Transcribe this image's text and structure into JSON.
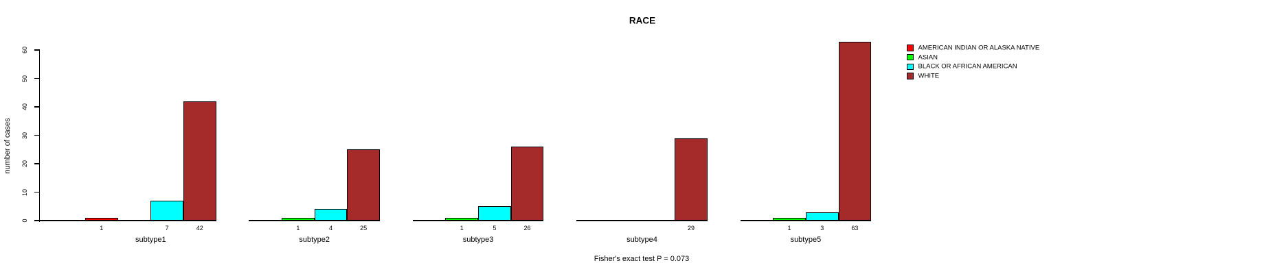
{
  "chart_data": {
    "type": "bar",
    "title": "RACE",
    "ylabel": "number of cases",
    "xlabel": "",
    "ylim": [
      0,
      60
    ],
    "yticks": [
      0,
      10,
      20,
      30,
      40,
      50,
      60
    ],
    "grid": false,
    "legend_position": "right",
    "annotation": "Fisher's exact test P = 0.073",
    "categories": [
      "subtype1",
      "subtype2",
      "subtype3",
      "subtype4",
      "subtype5"
    ],
    "series": [
      {
        "name": "AMERICAN INDIAN OR ALASKA NATIVE",
        "color": "#FF0000",
        "values": [
          1,
          0,
          0,
          0,
          0
        ]
      },
      {
        "name": "ASIAN",
        "color": "#00FF00",
        "values": [
          0,
          1,
          1,
          0,
          1
        ]
      },
      {
        "name": "BLACK OR AFRICAN AMERICAN",
        "color": "#00FFFF",
        "values": [
          7,
          4,
          5,
          0,
          3
        ]
      },
      {
        "name": "WHITE",
        "color": "#A52A2A",
        "values": [
          42,
          25,
          26,
          29,
          63
        ]
      }
    ],
    "bar_value_labels_shown_for_nonzero": true
  }
}
